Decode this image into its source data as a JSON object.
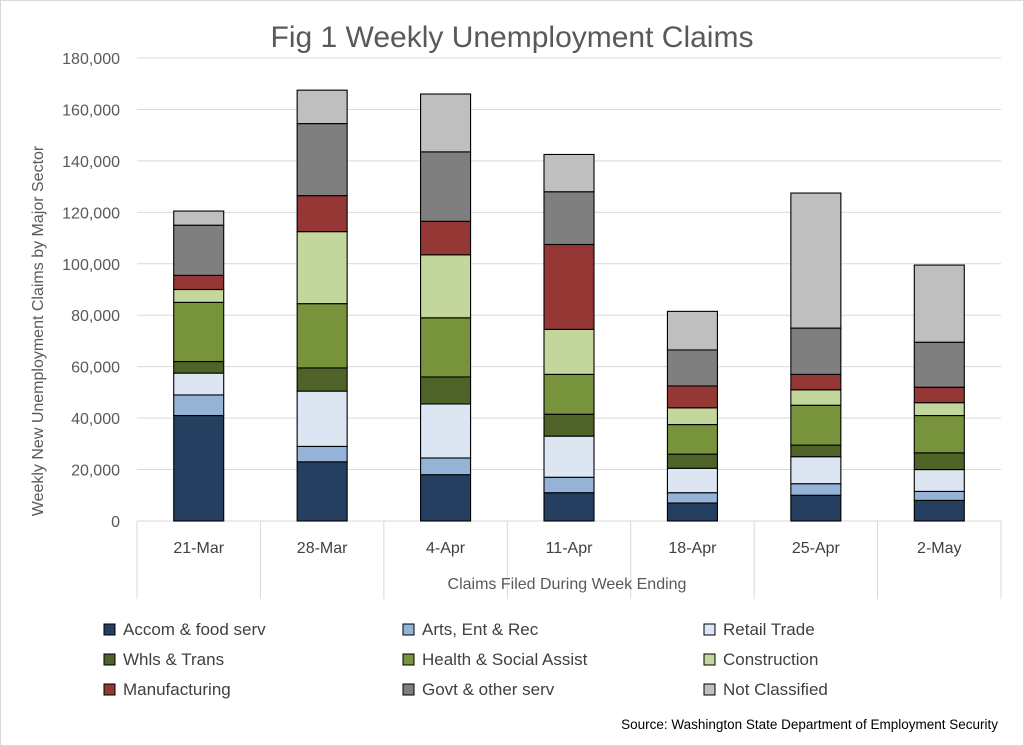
{
  "chart_data": {
    "type": "bar",
    "stacked": true,
    "title": "Fig 1 Weekly Unemployment Claims",
    "xlabel": "Claims Filed During Week Ending",
    "ylabel": "Weekly New Unemployment Claims by Major Sector",
    "ylim": [
      0,
      180000
    ],
    "yticks": [
      "0",
      "20,000",
      "40,000",
      "60,000",
      "80,000",
      "100,000",
      "120,000",
      "140,000",
      "160,000",
      "180,000"
    ],
    "categories": [
      "21-Mar",
      "28-Mar",
      "4-Apr",
      "11-Apr",
      "18-Apr",
      "25-Apr",
      "2-May"
    ],
    "grid": true,
    "legend_position": "bottom",
    "series": [
      {
        "name": "Accom & food serv",
        "color": "#243f60",
        "values": [
          41000,
          23000,
          18000,
          11000,
          7000,
          10000,
          8000
        ]
      },
      {
        "name": "Arts, Ent & Rec",
        "color": "#95b3d7",
        "values": [
          8000,
          6000,
          6500,
          6000,
          4000,
          4500,
          3500
        ]
      },
      {
        "name": "Retail Trade",
        "color": "#dce6f2",
        "values": [
          8500,
          21500,
          21000,
          16000,
          9500,
          10500,
          8500
        ]
      },
      {
        "name": "Whls & Trans",
        "color": "#4f6228",
        "values": [
          4500,
          9000,
          10500,
          8500,
          5500,
          4500,
          6500
        ]
      },
      {
        "name": "Health & Social Assist",
        "color": "#77933c",
        "values": [
          23000,
          25000,
          23000,
          15500,
          11500,
          15500,
          14500
        ]
      },
      {
        "name": "Construction",
        "color": "#c3d69b",
        "values": [
          5000,
          28000,
          24500,
          17500,
          6500,
          6000,
          5000
        ]
      },
      {
        "name": "Manufacturing",
        "color": "#953735",
        "values": [
          5500,
          14000,
          13000,
          33000,
          8500,
          6000,
          6000
        ]
      },
      {
        "name": "Govt & other serv",
        "color": "#7f7f7f",
        "values": [
          19500,
          28000,
          27000,
          20500,
          14000,
          18000,
          17500
        ]
      },
      {
        "name": "Not Classified",
        "color": "#bfbfbf",
        "values": [
          5500,
          13000,
          22500,
          14500,
          15000,
          52500,
          30000
        ]
      }
    ],
    "source": "Source: Washington State Department of Employment Security"
  }
}
